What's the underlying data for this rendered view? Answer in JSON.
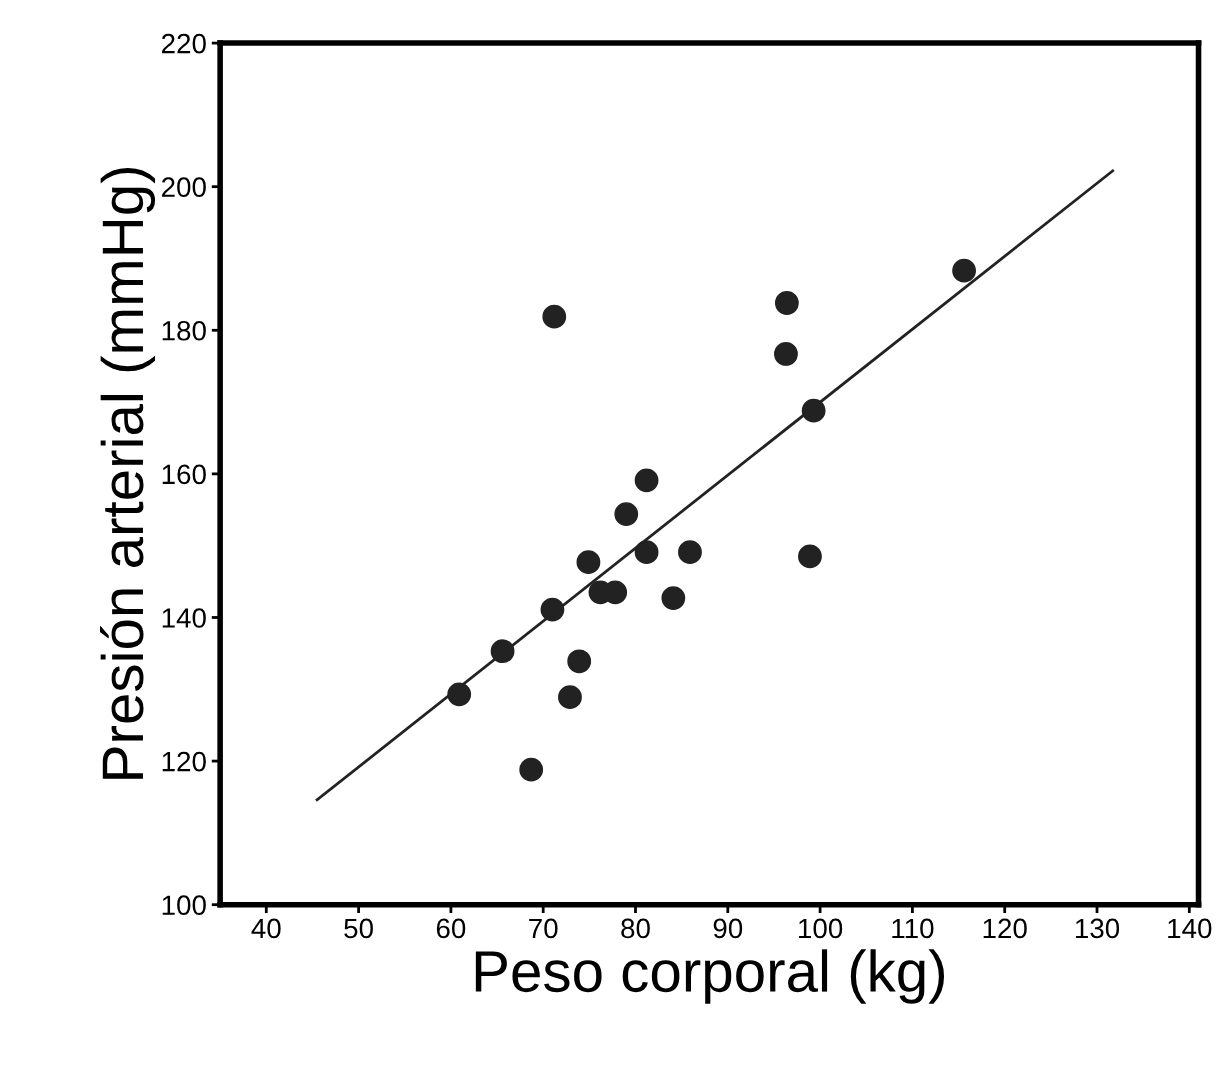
{
  "chart_data": {
    "type": "scatter",
    "xlabel": "Peso corporal (kg)",
    "ylabel": "Presión arterial (mmHg)",
    "xlim": [
      35,
      141
    ],
    "ylim": [
      100,
      220
    ],
    "xticks": [
      40,
      50,
      60,
      70,
      80,
      90,
      100,
      110,
      120,
      130,
      140
    ],
    "yticks": [
      100,
      120,
      140,
      160,
      180,
      200,
      220
    ],
    "grid": false,
    "legend": false,
    "marker": "circle",
    "series": [
      {
        "color": "#222222",
        "x": [
          60.9,
          65.6,
          71.0,
          68.7,
          71.2,
          72.9,
          73.9,
          74.9,
          76.2,
          77.8,
          79.0,
          81.2,
          81.2,
          84.1,
          85.9,
          96.4,
          96.3,
          98.9,
          99.3,
          115.6
        ],
        "values": [
          129.3,
          135.3,
          141.1,
          118.8,
          181.9,
          128.9,
          133.9,
          147.7,
          143.5,
          143.5,
          154.4,
          159.1,
          149.1,
          142.7,
          149.1,
          183.8,
          176.7,
          148.5,
          168.8,
          188.3
        ]
      },
      {
        "type": "line",
        "color": "#222222",
        "x": [
          45.5,
          131.7
        ],
        "values": [
          114.6,
          202.2
        ],
        "marker": "none",
        "line_style": "solid"
      }
    ]
  }
}
